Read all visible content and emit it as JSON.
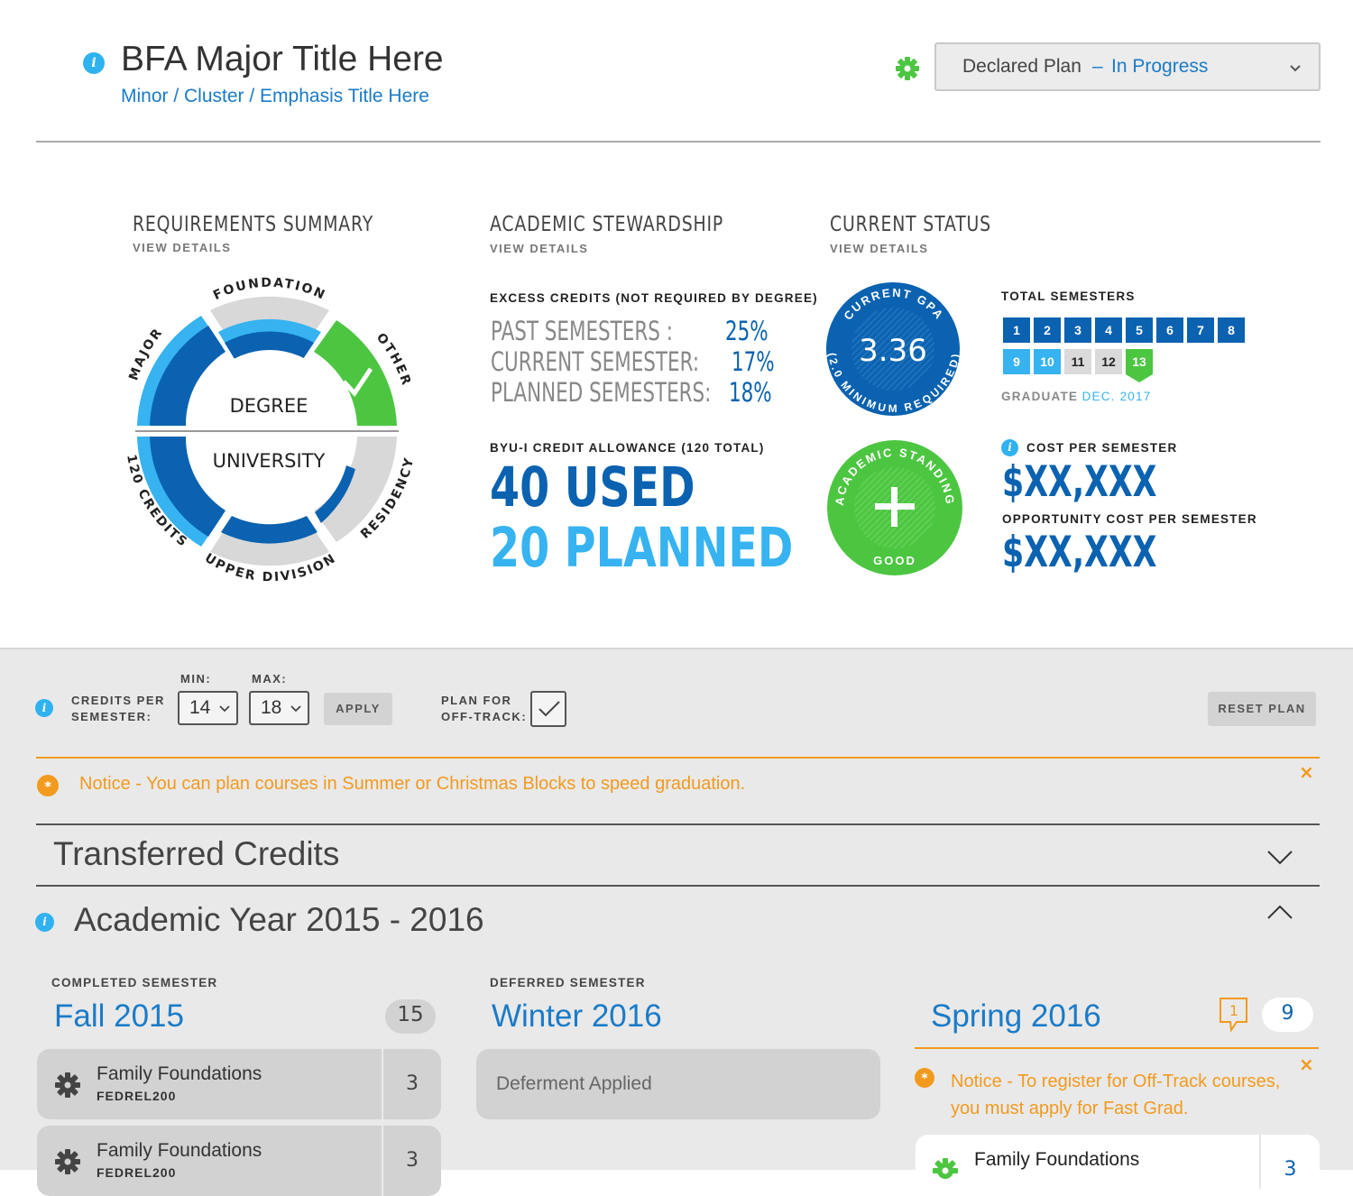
{
  "header": {
    "major_title": "BFA Major Title Here",
    "minor_title": "Minor / Cluster / Emphasis Title Here",
    "plan_select": {
      "label": "Declared Plan",
      "separator": "–",
      "status": "In Progress"
    },
    "icons": {
      "info": "info-icon",
      "settings": "gear-icon",
      "dropdown": "chevron-down-icon"
    }
  },
  "requirements": {
    "title": "REQUIREMENTS SUMMARY",
    "view_details": "VIEW DETAILS",
    "center_top": "DEGREE",
    "center_bottom": "UNIVERSITY",
    "segments": {
      "foundation": "FOUNDATION",
      "other": "OTHER",
      "major": "MAJOR",
      "credits": "120 CREDITS",
      "residency": "RESIDENCY",
      "upper": "UPPER DIVISION"
    },
    "other_status": "complete"
  },
  "stewardship": {
    "title": "ACADEMIC STEWARDSHIP",
    "view_details": "VIEW DETAILS",
    "excess_heading": "EXCESS CREDITS (NOT REQUIRED BY DEGREE)",
    "rows": [
      {
        "label": "PAST SEMESTERS :",
        "value": "25%"
      },
      {
        "label": "CURRENT SEMESTER:",
        "value": "17%"
      },
      {
        "label": "PLANNED SEMESTERS:",
        "value": "18%"
      }
    ],
    "allowance_heading": "BYU-I CREDIT ALLOWANCE (120 TOTAL)",
    "used": "40 USED",
    "planned": "20 PLANNED"
  },
  "status": {
    "title": "CURRENT STATUS",
    "view_details": "VIEW DETAILS",
    "gpa_label": "CURRENT GPA",
    "gpa_value": "3.36",
    "gpa_note": "(2.0 MINIMUM REQUIRED)",
    "standing_label": "ACADEMIC STANDING",
    "standing_value": "GOOD",
    "total_semesters_label": "TOTAL SEMESTERS",
    "semesters": [
      {
        "n": "1",
        "state": "past"
      },
      {
        "n": "2",
        "state": "past"
      },
      {
        "n": "3",
        "state": "past"
      },
      {
        "n": "4",
        "state": "past"
      },
      {
        "n": "5",
        "state": "past"
      },
      {
        "n": "6",
        "state": "past"
      },
      {
        "n": "7",
        "state": "past"
      },
      {
        "n": "8",
        "state": "past"
      },
      {
        "n": "9",
        "state": "planned"
      },
      {
        "n": "10",
        "state": "planned"
      },
      {
        "n": "11",
        "state": "future"
      },
      {
        "n": "12",
        "state": "future"
      },
      {
        "n": "13",
        "state": "graduate"
      }
    ],
    "graduate_label": "GRADUATE",
    "graduate_date": "DEC. 2017",
    "cost_label": "COST PER SEMESTER",
    "cost_value": "$XX,XXX",
    "opp_label": "OPPORTUNITY COST PER SEMESTER",
    "opp_value": "$XX,XXX"
  },
  "controls": {
    "credits_label_1": "CREDITS PER",
    "credits_label_2": "SEMESTER:",
    "min_label": "MIN:",
    "min_value": "14",
    "max_label": "MAX:",
    "max_value": "18",
    "apply": "APPLY",
    "offtrack_label_1": "PLAN FOR",
    "offtrack_label_2": "OFF-TRACK:",
    "offtrack_checked": true,
    "reset": "RESET PLAN"
  },
  "notice": {
    "text": "Notice - You can plan courses in Summer or Christmas Blocks to speed graduation.",
    "close": "×"
  },
  "transferred": {
    "title": "Transferred Credits"
  },
  "academic_year": {
    "title": "Academic Year 2015 - 2016"
  },
  "semesters": {
    "fall": {
      "kind": "COMPLETED SEMESTER",
      "name": "Fall 2015",
      "credits": "15",
      "courses": [
        {
          "name": "Family Foundations",
          "code": "FEDREL200",
          "credits": "3"
        },
        {
          "name": "Family Foundations",
          "code": "FEDREL200",
          "credits": "3"
        }
      ]
    },
    "winter": {
      "kind": "DEFERRED SEMESTER",
      "name": "Winter 2016",
      "deferment": "Deferment Applied"
    },
    "spring": {
      "name": "Spring 2016",
      "comments": "1",
      "credits": "9",
      "notice_line1": "Notice - To register for Off-Track courses,",
      "notice_line2": "you must apply for Fast Grad.",
      "close": "×",
      "courses": [
        {
          "name": "Family Foundations",
          "credits": "3"
        }
      ]
    }
  },
  "colors": {
    "dark_blue": "#0a62b0",
    "light_blue": "#36b3f0",
    "green": "#4cc641",
    "orange": "#f29a1e",
    "gray": "#d6d6d6"
  }
}
